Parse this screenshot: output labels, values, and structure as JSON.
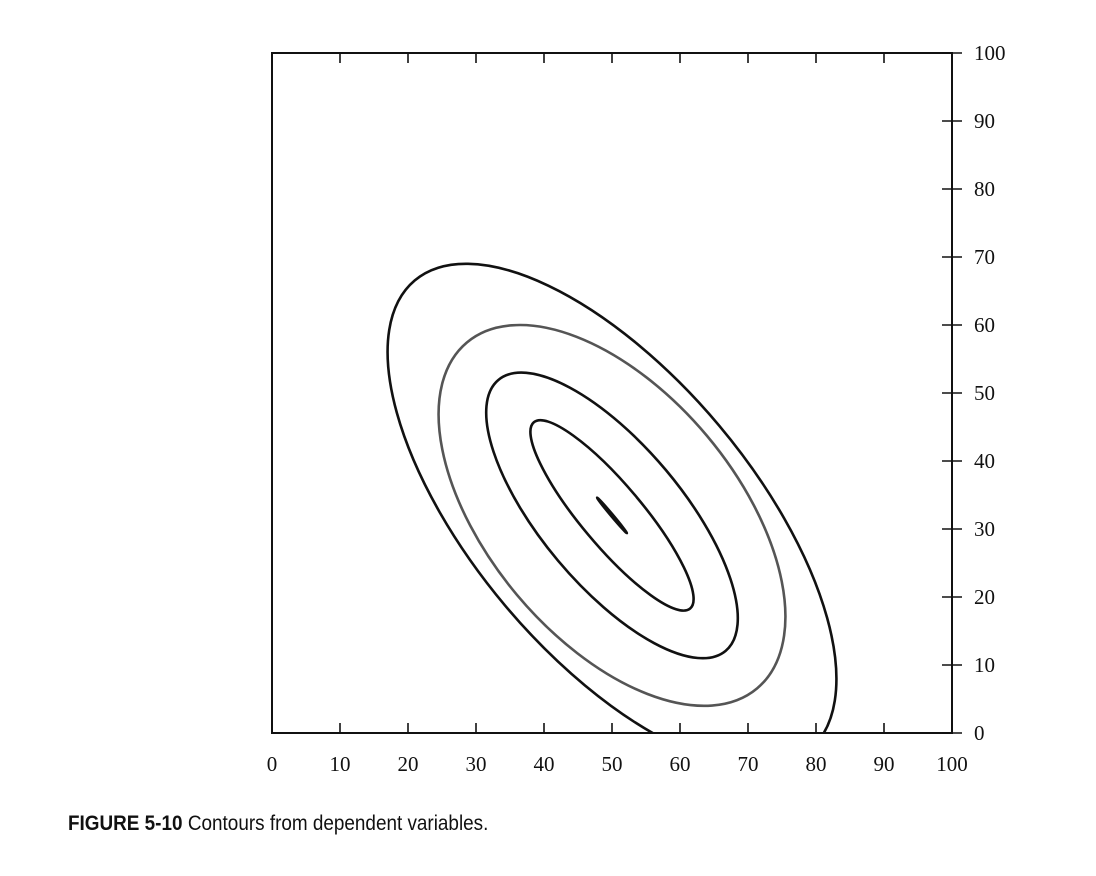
{
  "chart_data": {
    "type": "contour",
    "title": "",
    "xlabel": "",
    "ylabel": "",
    "xlim": [
      0,
      100
    ],
    "ylim": [
      0,
      100
    ],
    "x_ticks": [
      0,
      10,
      20,
      30,
      40,
      50,
      60,
      70,
      80,
      90,
      100
    ],
    "y_ticks": [
      0,
      10,
      20,
      30,
      40,
      50,
      60,
      70,
      80,
      90,
      100
    ],
    "x_tick_labels": [
      "0",
      "10",
      "20",
      "30",
      "40",
      "50",
      "60",
      "70",
      "80",
      "90",
      "100"
    ],
    "y_tick_labels": [
      "0",
      "10",
      "20",
      "30",
      "40",
      "50",
      "60",
      "70",
      "80",
      "90",
      "100"
    ],
    "y_axis_side": "right",
    "grid": false,
    "contours": [
      {
        "level": 1,
        "center": [
          50,
          32
        ],
        "extent_x": [
          48,
          52
        ],
        "extent_y": [
          29.5,
          34.5
        ],
        "color": "#111111"
      },
      {
        "level": 2,
        "center": [
          50,
          32
        ],
        "extent_x": [
          38,
          62
        ],
        "extent_y": [
          18,
          46
        ],
        "color": "#111111"
      },
      {
        "level": 3,
        "center": [
          50,
          32
        ],
        "extent_x": [
          31.5,
          68.5
        ],
        "extent_y": [
          11,
          53
        ],
        "color": "#111111"
      },
      {
        "level": 4,
        "center": [
          50,
          32
        ],
        "extent_x": [
          24.5,
          75.5
        ],
        "extent_y": [
          4,
          60
        ],
        "color": "#555555"
      },
      {
        "level": 5,
        "center": [
          50,
          32
        ],
        "extent_x": [
          17,
          83
        ],
        "extent_y": [
          -5,
          69
        ],
        "color": "#111111"
      }
    ]
  },
  "caption": {
    "label": "FIGURE 5-10",
    "text": "Contours from dependent variables."
  }
}
